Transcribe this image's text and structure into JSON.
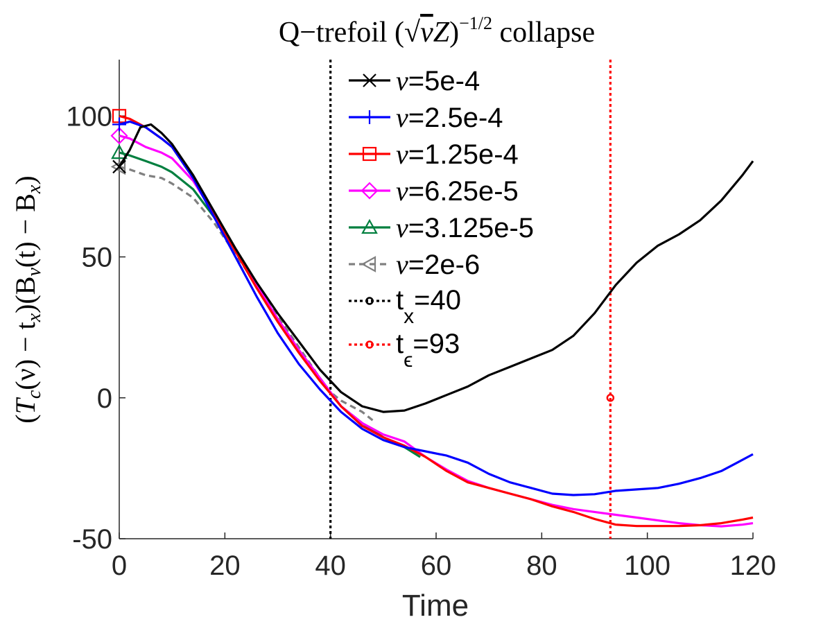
{
  "chart_data": {
    "type": "line",
    "title": "Q−trefoil (√νZ)^{−1/2} collapse",
    "title_parts": {
      "prefix": "Q−trefoil (",
      "sqrt": "√",
      "nu": "ν",
      "z": "Z",
      "close": ")",
      "exponent": "−1/2",
      "suffix": " collapse"
    },
    "xlabel": "Time",
    "ylabel": "(Tc(ν) − tx)(Bν(t) − Bx)",
    "ylabel_parts": {
      "open": "(",
      "T": "T",
      "c": "c",
      "nu_arg": "(ν) − t",
      "x1": "x",
      "mid": ")(B",
      "nu_sub": "ν",
      "t_arg": "(t) − B",
      "x2": "x",
      "close": ")"
    },
    "xlim": [
      0,
      120
    ],
    "ylim": [
      -50,
      120
    ],
    "xticks": [
      0,
      20,
      40,
      60,
      80,
      100,
      120
    ],
    "yticks": [
      -50,
      0,
      50,
      100
    ],
    "xtick_labels": [
      "0",
      "20",
      "40",
      "60",
      "80",
      "100",
      "120"
    ],
    "ytick_labels": [
      "-50",
      "0",
      "50",
      "100"
    ],
    "legend_position": "top-center",
    "series": [
      {
        "name": "ν=5e-4",
        "label_nu": "ν",
        "label_value": "=5e-4",
        "color": "#000000",
        "marker": "x",
        "dash": "solid",
        "x": [
          0,
          2,
          4,
          6,
          8,
          10,
          14,
          18,
          22,
          26,
          30,
          34,
          38,
          42,
          46,
          50,
          54,
          58,
          62,
          66,
          70,
          74,
          78,
          82,
          86,
          90,
          94,
          98,
          102,
          106,
          110,
          114,
          118,
          120
        ],
        "y": [
          82,
          88,
          96,
          97,
          94,
          90,
          79,
          66,
          53,
          41,
          30,
          20,
          10,
          2,
          -3,
          -5,
          -4.5,
          -2,
          1,
          4,
          8,
          11,
          14,
          17,
          22,
          30,
          40,
          48,
          54,
          58,
          63,
          70,
          79,
          84
        ]
      },
      {
        "name": "ν=2.5e-4",
        "label_nu": "ν",
        "label_value": "=2.5e-4",
        "color": "#0000ff",
        "marker": "+",
        "dash": "solid",
        "x": [
          0,
          2,
          5,
          8,
          10,
          14,
          18,
          22,
          26,
          30,
          34,
          38,
          42,
          46,
          50,
          54,
          58,
          62,
          66,
          70,
          74,
          78,
          82,
          86,
          90,
          94,
          98,
          102,
          106,
          110,
          114,
          117,
          120
        ],
        "y": [
          97,
          98,
          96,
          92,
          89,
          78,
          64,
          50,
          36,
          23,
          12,
          3,
          -5,
          -11,
          -15,
          -17.5,
          -19,
          -20.5,
          -23,
          -27,
          -30,
          -32,
          -34,
          -34.5,
          -34.2,
          -33,
          -32.5,
          -32,
          -30.5,
          -28.5,
          -26,
          -23,
          -20
        ]
      },
      {
        "name": "ν=1.25e-4",
        "label_nu": "ν",
        "label_value": "=1.25e-4",
        "color": "#ff0000",
        "marker": "square",
        "dash": "solid",
        "x": [
          0,
          2,
          5,
          8,
          10,
          14,
          18,
          22,
          26,
          30,
          34,
          38,
          42,
          46,
          50,
          54,
          58,
          62,
          66,
          70,
          74,
          78,
          82,
          86,
          90,
          94,
          98,
          102,
          106,
          110,
          114,
          118,
          120
        ],
        "y": [
          100,
          99,
          96,
          92,
          89,
          78,
          65,
          52,
          39,
          27,
          16,
          6,
          -3,
          -10,
          -14,
          -17,
          -21,
          -26,
          -30,
          -32,
          -34,
          -36,
          -38.5,
          -40.5,
          -43,
          -45,
          -45.5,
          -45.5,
          -45.5,
          -45.2,
          -44.5,
          -43.2,
          -42.5
        ]
      },
      {
        "name": "ν=6.25e-5",
        "label_nu": "ν",
        "label_value": "=6.25e-5",
        "color": "#ff00ff",
        "marker": "diamond",
        "dash": "solid",
        "x": [
          0,
          2,
          5,
          8,
          10,
          14,
          18,
          22,
          26,
          30,
          34,
          38,
          42,
          46,
          50,
          54,
          58,
          62,
          66,
          70,
          74,
          78,
          82,
          86,
          90,
          94,
          98,
          102,
          106,
          110,
          114,
          118,
          120
        ],
        "y": [
          93,
          92,
          89,
          87,
          85,
          77,
          65,
          52,
          40,
          28,
          17,
          7,
          -3,
          -9,
          -13,
          -15.5,
          -21,
          -25.5,
          -29.5,
          -32,
          -34,
          -36,
          -38,
          -39.5,
          -40.5,
          -41.5,
          -42.5,
          -43.5,
          -44.5,
          -45.2,
          -45.6,
          -45,
          -44.5
        ]
      },
      {
        "name": "ν=3.125e-5",
        "label_nu": "ν",
        "label_value": "=3.125e-5",
        "color": "#007f3f",
        "marker": "triangle-up",
        "dash": "solid",
        "x": [
          0,
          2,
          5,
          8,
          10,
          14,
          18,
          22,
          26,
          30,
          34,
          38,
          42,
          46,
          50,
          54,
          57
        ],
        "y": [
          87,
          86,
          84,
          82,
          80,
          74,
          64,
          52,
          40,
          28,
          17,
          7,
          -3,
          -9,
          -14,
          -17.5,
          -21
        ]
      },
      {
        "name": "ν=2e-6",
        "label_nu": "ν",
        "label_value": "=2e-6",
        "color": "#808080",
        "marker": "triangle-left",
        "dash": "dashed",
        "x": [
          0,
          2,
          5,
          8,
          10,
          14,
          18,
          22,
          26,
          30,
          34,
          38,
          40,
          42,
          44,
          46,
          48
        ],
        "y": [
          82,
          81,
          79,
          78,
          76,
          71,
          62,
          51,
          40,
          29,
          18,
          7,
          2,
          -1,
          -3,
          -5,
          -8
        ]
      }
    ],
    "reference_lines": [
      {
        "name": "t_x=40",
        "label_t": "t",
        "label_sub": "x",
        "label_value": "=40",
        "x": 40,
        "color": "#000000",
        "style": "dotted",
        "marker": "circle",
        "marker_y": null
      },
      {
        "name": "t_ε=93",
        "label_t": "t",
        "label_sub": "ϵ",
        "label_value": "=93",
        "x": 93,
        "color": "#ff0000",
        "style": "dotted",
        "marker": "circle",
        "marker_y": 0
      }
    ]
  }
}
